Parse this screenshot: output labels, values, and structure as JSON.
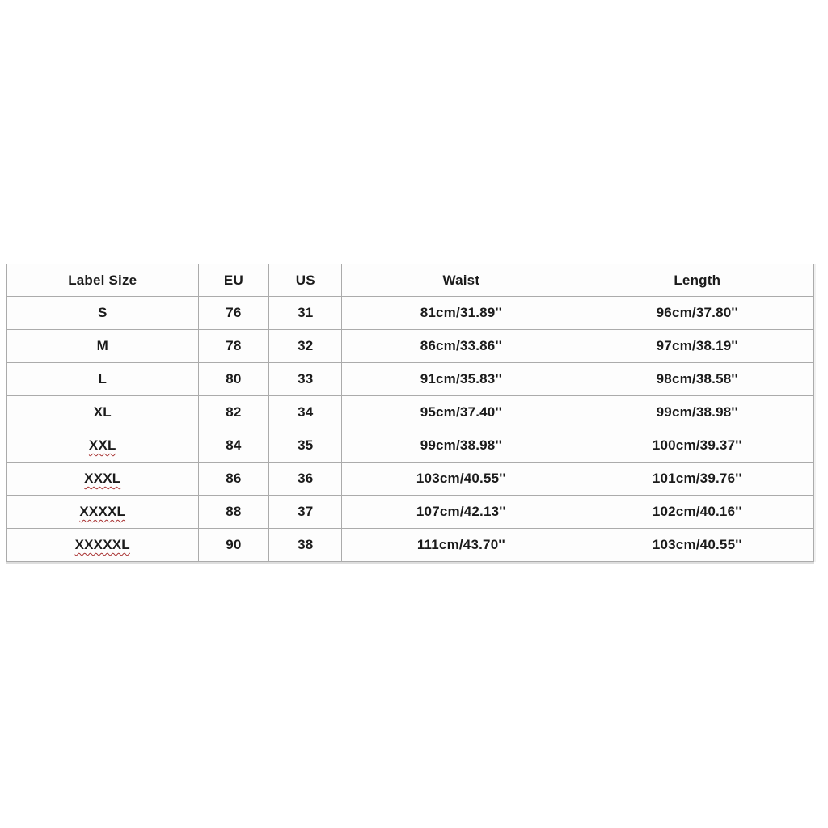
{
  "page": {
    "background_color": "#ffffff"
  },
  "table": {
    "name": "size-chart",
    "colors": {
      "border": "#ababab",
      "outer_border": "#979797",
      "text": "#1b1b1b",
      "cell_background": "#fdfdfd",
      "squiggle": "#a83232"
    },
    "columns": [
      {
        "key": "label_size",
        "label": "Label Size"
      },
      {
        "key": "eu",
        "label": "EU"
      },
      {
        "key": "us",
        "label": "US"
      },
      {
        "key": "waist",
        "label": "Waist"
      },
      {
        "key": "length",
        "label": "Length"
      }
    ],
    "rows": [
      {
        "label_size": "S",
        "eu": "76",
        "us": "31",
        "waist": "81cm/31.89''",
        "length": "96cm/37.80''",
        "spellcheck": false
      },
      {
        "label_size": "M",
        "eu": "78",
        "us": "32",
        "waist": "86cm/33.86''",
        "length": "97cm/38.19''",
        "spellcheck": false
      },
      {
        "label_size": "L",
        "eu": "80",
        "us": "33",
        "waist": "91cm/35.83''",
        "length": "98cm/38.58''",
        "spellcheck": false
      },
      {
        "label_size": "XL",
        "eu": "82",
        "us": "34",
        "waist": "95cm/37.40''",
        "length": "99cm/38.98''",
        "spellcheck": false
      },
      {
        "label_size": "XXL",
        "eu": "84",
        "us": "35",
        "waist": "99cm/38.98''",
        "length": "100cm/39.37''",
        "spellcheck": true
      },
      {
        "label_size": "XXXL",
        "eu": "86",
        "us": "36",
        "waist": "103cm/40.55''",
        "length": "101cm/39.76''",
        "spellcheck": true
      },
      {
        "label_size": "XXXXL",
        "eu": "88",
        "us": "37",
        "waist": "107cm/42.13''",
        "length": "102cm/40.16''",
        "spellcheck": true
      },
      {
        "label_size": "XXXXXL",
        "eu": "90",
        "us": "38",
        "waist": "111cm/43.70''",
        "length": "103cm/40.55''",
        "spellcheck": true
      }
    ]
  }
}
